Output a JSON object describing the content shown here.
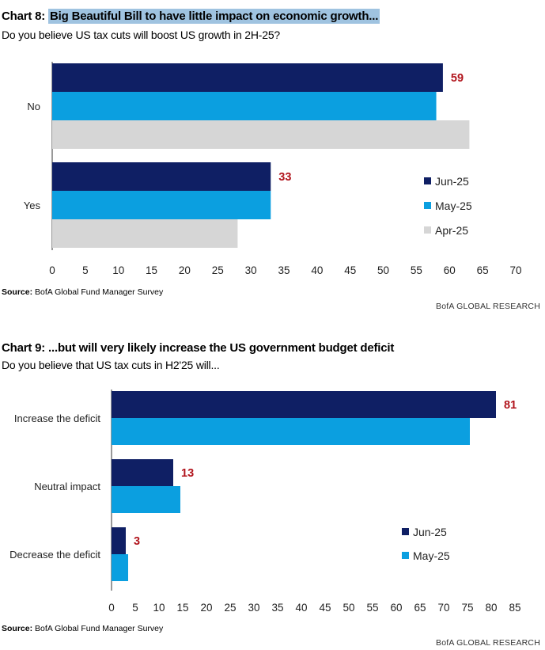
{
  "chart8": {
    "title_prefix": "Chart 8: ",
    "title_main": "Big Beautiful Bill to have little impact on economic growth...",
    "subtitle": "Do you believe US tax cuts will boost US growth in 2H-25?",
    "source_label": "Source:",
    "source_text": " BofA Global Fund Manager Survey",
    "research": "BofA GLOBAL RESEARCH"
  },
  "chart9": {
    "title_prefix": "Chart 9: ",
    "title_main": "...but will very likely increase the US government budget deficit",
    "subtitle": "Do you believe that US tax cuts in H2'25 will...",
    "source_label": "Source:",
    "source_text": " BofA Global Fund Manager Survey",
    "research": "BofA GLOBAL RESEARCH"
  },
  "chart_data": [
    {
      "type": "bar",
      "orientation": "horizontal",
      "title": "Chart 8: Big Beautiful Bill to have little impact on economic growth...",
      "subtitle": "Do you believe US tax cuts will boost US growth in 2H-25?",
      "categories": [
        "No",
        "Yes"
      ],
      "series": [
        {
          "name": "Jun-25",
          "color": "#0f1f64",
          "values": [
            59,
            33
          ],
          "labels": [
            "59",
            "33"
          ]
        },
        {
          "name": "May-25",
          "color": "#0b9fe0",
          "values": [
            58,
            33
          ]
        },
        {
          "name": "Apr-25",
          "color": "#d6d6d6",
          "values": [
            63,
            28
          ]
        }
      ],
      "xlim": [
        0,
        70
      ],
      "xticks": [
        0,
        5,
        10,
        15,
        20,
        25,
        30,
        35,
        40,
        45,
        50,
        55,
        60,
        65,
        70
      ],
      "legend": "bottom-right",
      "label_color": "#b1141c"
    },
    {
      "type": "bar",
      "orientation": "horizontal",
      "title": "Chart 9: ...but will very likely increase the US government budget deficit",
      "subtitle": "Do you believe that US tax cuts in H2'25 will...",
      "categories": [
        "Increase the deficit",
        "Neutral impact",
        "Decrease the deficit"
      ],
      "series": [
        {
          "name": "Jun-25",
          "color": "#0f1f64",
          "values": [
            81,
            13,
            3
          ],
          "labels": [
            "81",
            "13",
            "3"
          ]
        },
        {
          "name": "May-25",
          "color": "#0b9fe0",
          "values": [
            75.5,
            14.5,
            3.5
          ]
        }
      ],
      "xlim": [
        0,
        85
      ],
      "xticks": [
        0,
        5,
        10,
        15,
        20,
        25,
        30,
        35,
        40,
        45,
        50,
        55,
        60,
        65,
        70,
        75,
        80,
        85
      ],
      "legend": "bottom-right",
      "label_color": "#b1141c"
    }
  ]
}
